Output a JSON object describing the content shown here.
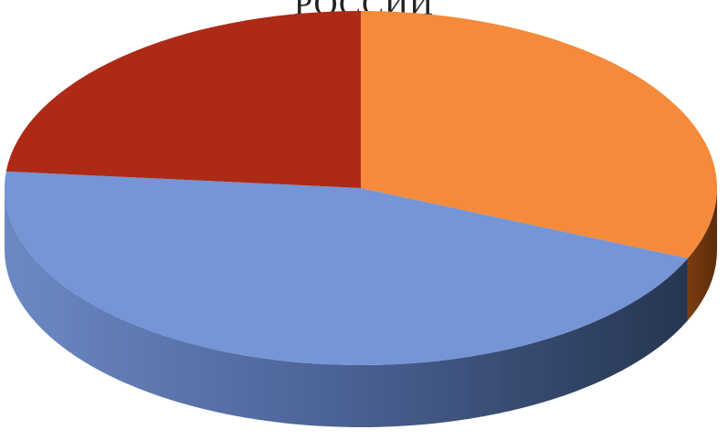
{
  "chart_data": {
    "type": "pie",
    "title": "РОССИИ",
    "series": [
      {
        "color": "#f58a3b",
        "value": 31.5
      },
      {
        "color": "#7595d6",
        "value": 45.0
      },
      {
        "color": "#ad2a17",
        "value": 23.5
      }
    ]
  }
}
